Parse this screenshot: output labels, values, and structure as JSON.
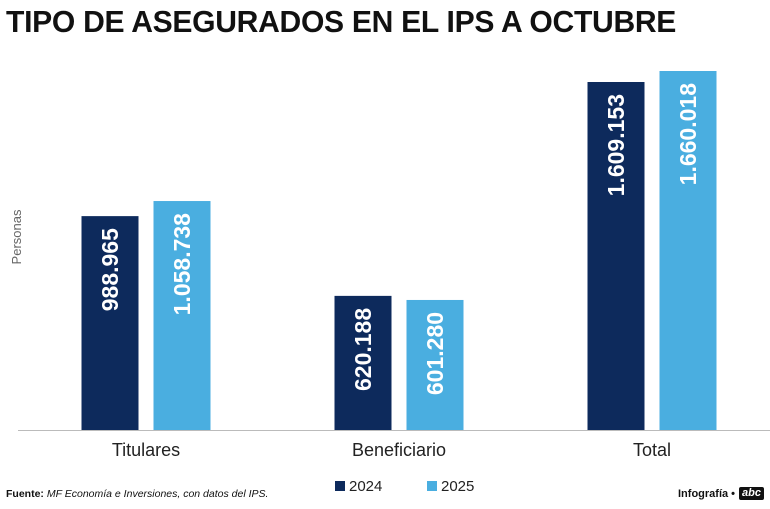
{
  "title": "TIPO DE ASEGURADOS EN EL IPS A OCTUBRE",
  "footer": {
    "source_label": "Fuente:",
    "source_text": "MF Economía e Inversiones, con datos del IPS.",
    "credit": "Infografía •",
    "logo": "abc"
  },
  "chart_data": {
    "type": "bar",
    "title": "TIPO DE ASEGURADOS EN EL IPS A OCTUBRE",
    "xlabel": "",
    "ylabel": "Personas",
    "ylim": [
      0,
      1660018
    ],
    "grid": false,
    "legend_position": "bottom-center",
    "categories": [
      "Titulares",
      "Beneficiario",
      "Total"
    ],
    "series": [
      {
        "name": "2024",
        "color": "#0d2a5c",
        "values": [
          988965,
          620188,
          1609153
        ],
        "labels": [
          "988.965",
          "620.188",
          "1.609.153"
        ]
      },
      {
        "name": "2025",
        "color": "#4aaee0",
        "values": [
          1058738,
          601280,
          1660018
        ],
        "labels": [
          "1.058.738",
          "601.280",
          "1.660.018"
        ]
      }
    ]
  }
}
